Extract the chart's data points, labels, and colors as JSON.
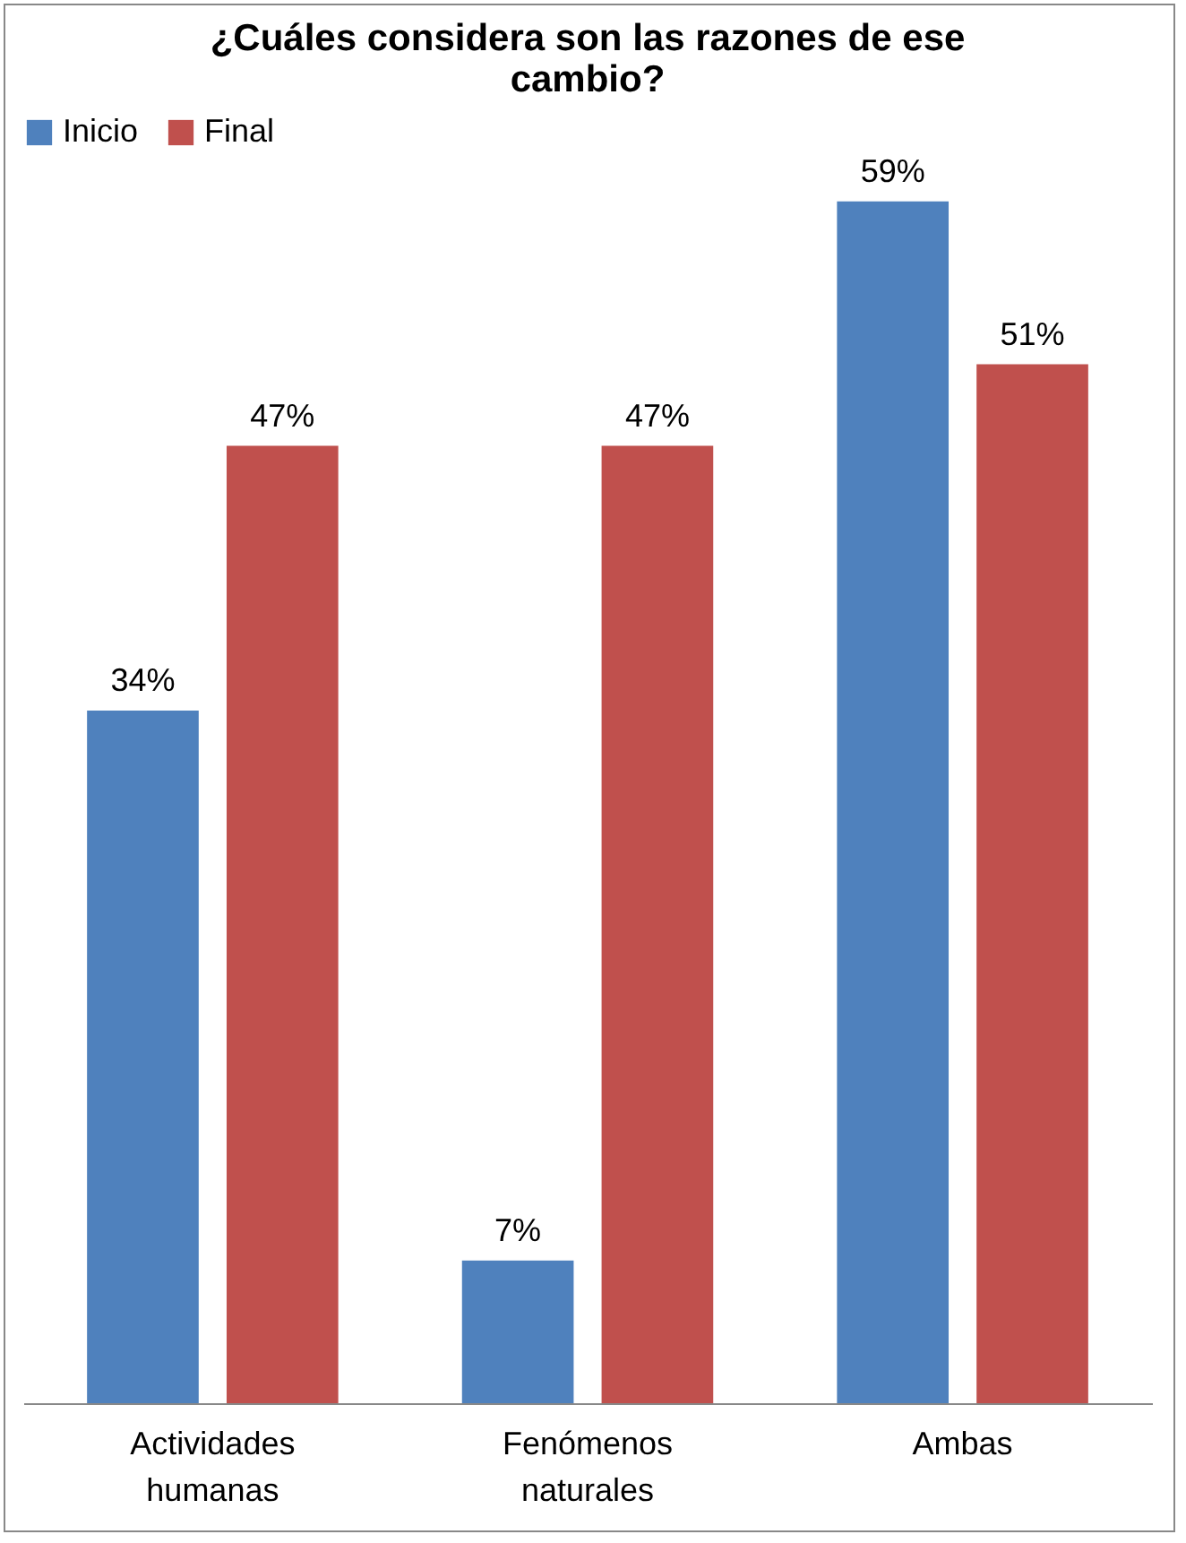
{
  "chart_data": {
    "type": "bar",
    "title": "¿Cuáles considera son las razones de ese cambio?",
    "categories": [
      "Actividades humanas",
      "Fenómenos naturales",
      "Ambas"
    ],
    "series": [
      {
        "name": "Inicio",
        "color": "#4f81bd",
        "values": [
          34,
          7,
          59
        ],
        "value_labels": [
          "34%",
          "7%",
          "59%"
        ]
      },
      {
        "name": "Final",
        "color": "#c0504d",
        "values": [
          47,
          47,
          51
        ],
        "value_labels": [
          "47%",
          "47%",
          "51%"
        ]
      }
    ],
    "legend": "top",
    "grid": false
  }
}
